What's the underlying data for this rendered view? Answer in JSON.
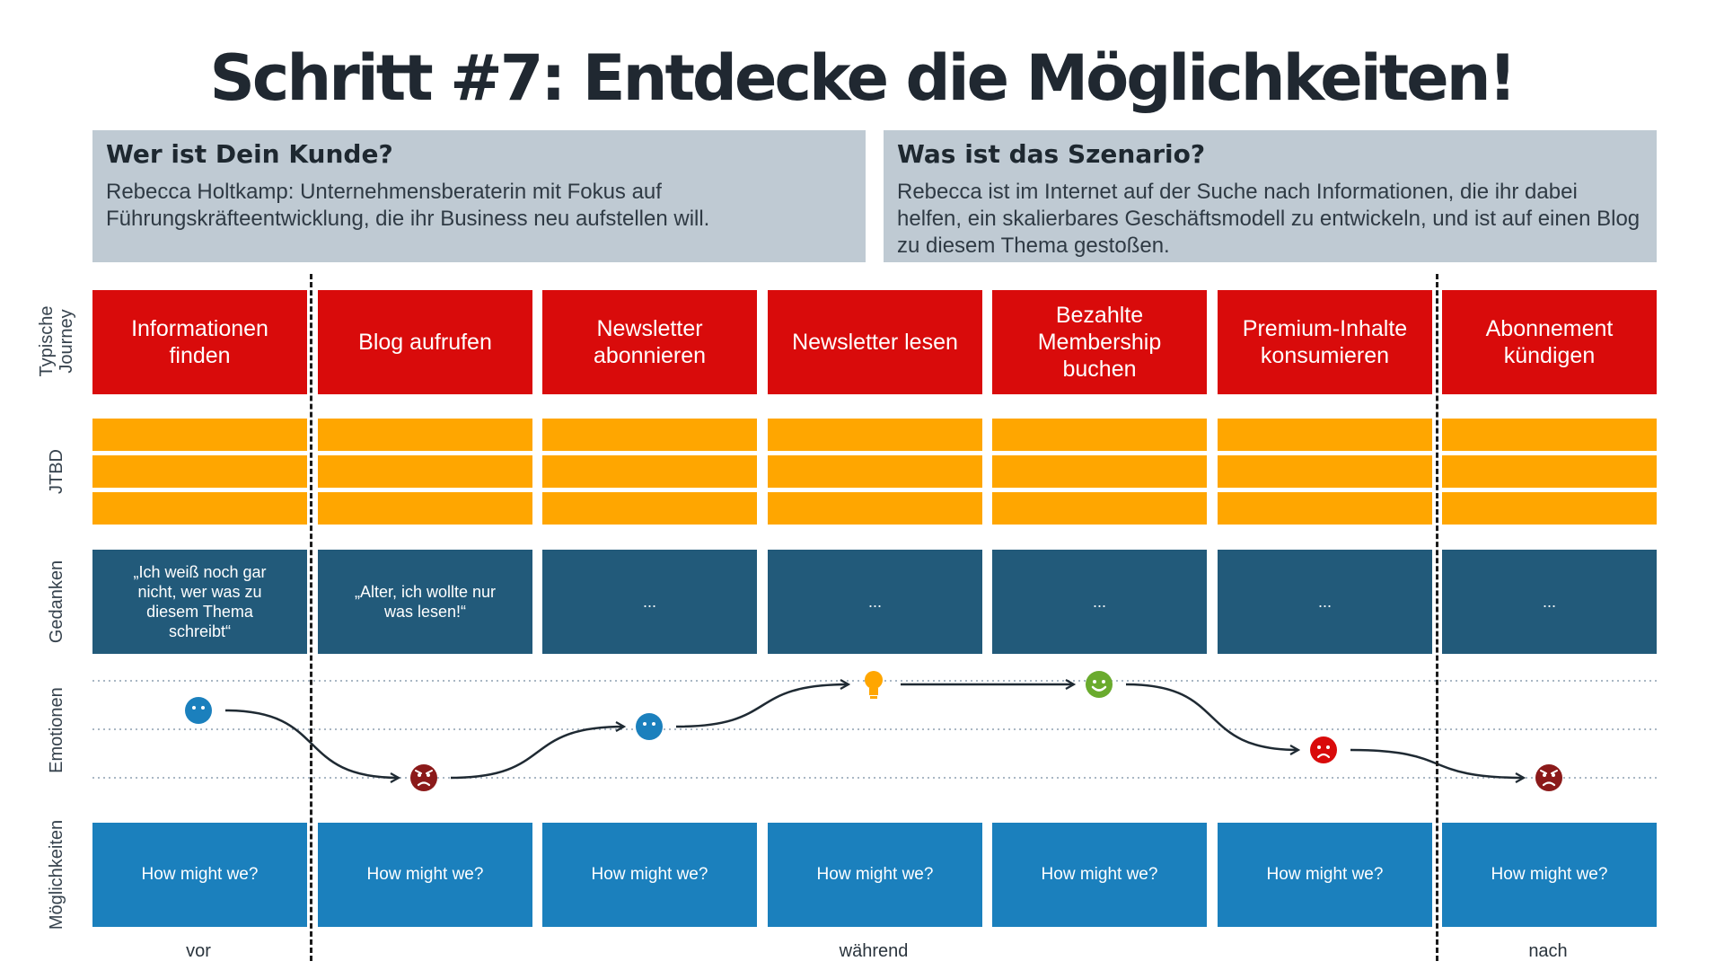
{
  "title": "Schritt #7: Entdecke die Möglichkeiten!",
  "customer": {
    "heading": "Wer ist Dein Kunde?",
    "text": "Rebecca Holtkamp: Unternehmensberaterin mit Fokus auf Führungskräfteentwicklung, die ihr Business neu aufstellen will."
  },
  "scenario": {
    "heading": "Was ist das Szenario?",
    "text": "Rebecca ist im Internet auf der Suche nach Informationen, die ihr dabei helfen, ein skalierbares Geschäftsmodell zu entwickeln, und ist auf einen Blog zu diesem Thema gestoßen."
  },
  "row_labels": {
    "journey": "Typische Journey",
    "jtbd": "JTBD",
    "thoughts": "Gedanken",
    "emotions": "Emotionen",
    "opportunities": "Möglichkeiten"
  },
  "journey": [
    "Informationen finden",
    "Blog aufrufen",
    "Newsletter abonnieren",
    "Newsletter lesen",
    "Bezahlte Membership buchen",
    "Premium-Inhalte konsumieren",
    "Abonnement kündigen"
  ],
  "thoughts": [
    "„Ich weiß noch gar nicht, wer was zu diesem Thema schreibt“",
    "„Alter, ich wollte nur was lesen!“",
    "...",
    "...",
    "...",
    "...",
    "..."
  ],
  "opportunities": [
    "How might we?",
    "How might we?",
    "How might we?",
    "How might we?",
    "How might we?",
    "How might we?",
    "How might we?"
  ],
  "emotions": [
    {
      "icon": "neutral-face-icon",
      "level": "neutral-high",
      "color": "#1b80bd"
    },
    {
      "icon": "angry-face-icon",
      "level": "low",
      "color": "#8b1a1a"
    },
    {
      "icon": "neutral-face-icon",
      "level": "medium",
      "color": "#1b80bd"
    },
    {
      "icon": "lightbulb-icon",
      "level": "high",
      "color": "#ffa600"
    },
    {
      "icon": "happy-face-icon",
      "level": "high",
      "color": "#6aab2e"
    },
    {
      "icon": "sad-face-icon",
      "level": "low-medium",
      "color": "#d90b0b"
    },
    {
      "icon": "angry-face-icon",
      "level": "low",
      "color": "#8b1a1a"
    }
  ],
  "phases": {
    "before": "vor",
    "during": "während",
    "after": "nach"
  },
  "colors": {
    "journey": "#d90b0b",
    "jtbd": "#ffa600",
    "thoughts": "#225a7a",
    "opportunities": "#1b80bd",
    "infobox": "#bfcad3"
  }
}
